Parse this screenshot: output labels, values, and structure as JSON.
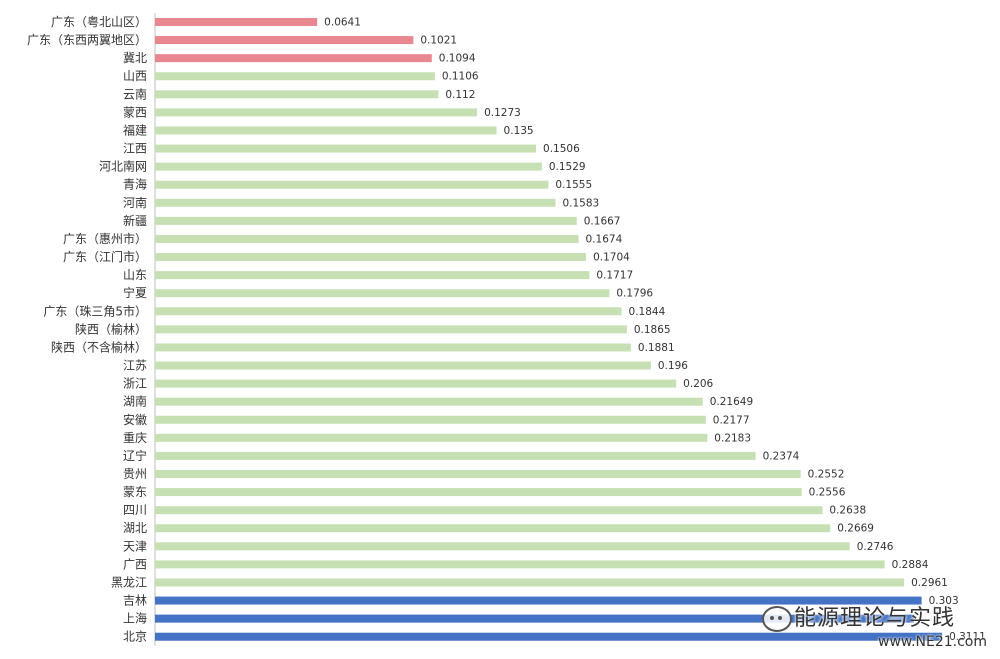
{
  "chart_data": {
    "type": "bar",
    "orientation": "horizontal",
    "categories": [
      "广东（粤北山区）",
      "广东（东西两翼地区）",
      "冀北",
      "山西",
      "云南",
      "蒙西",
      "福建",
      "江西",
      "河北南网",
      "青海",
      "河南",
      "新疆",
      "广东（惠州市）",
      "广东（江门市）",
      "山东",
      "宁夏",
      "广东（珠三角5市）",
      "陕西（榆林）",
      "陕西（不含榆林）",
      "江苏",
      "浙江",
      "湖南",
      "安徽",
      "重庆",
      "辽宁",
      "贵州",
      "蒙东",
      "四川",
      "湖北",
      "天津",
      "广西",
      "黑龙江",
      "吉林",
      "上海",
      "北京"
    ],
    "values": [
      0.0641,
      0.1021,
      0.1094,
      0.1106,
      0.112,
      0.1273,
      0.135,
      0.1506,
      0.1529,
      0.1555,
      0.1583,
      0.1667,
      0.1674,
      0.1704,
      0.1717,
      0.1796,
      0.1844,
      0.1865,
      0.1881,
      0.196,
      0.206,
      0.21649,
      0.2177,
      0.2183,
      0.2374,
      0.2552,
      0.2556,
      0.2638,
      0.2669,
      0.2746,
      0.2884,
      0.2961,
      0.303,
      0.3,
      0.3111
    ],
    "value_labels": [
      "0.0641",
      "0.1021",
      "0.1094",
      "0.1106",
      "0.112",
      "0.1273",
      "0.135",
      "0.1506",
      "0.1529",
      "0.1555",
      "0.1583",
      "0.1667",
      "0.1674",
      "0.1704",
      "0.1717",
      "0.1796",
      "0.1844",
      "0.1865",
      "0.1881",
      "0.196",
      "0.206",
      "0.21649",
      "0.2177",
      "0.2183",
      "0.2374",
      "0.2552",
      "0.2556",
      "0.2638",
      "0.2669",
      "0.2746",
      "0.2884",
      "0.2961",
      "0.303",
      "",
      "0.3111"
    ],
    "groups": [
      "low",
      "low",
      "low",
      "mid",
      "mid",
      "mid",
      "mid",
      "mid",
      "mid",
      "mid",
      "mid",
      "mid",
      "mid",
      "mid",
      "mid",
      "mid",
      "mid",
      "mid",
      "mid",
      "mid",
      "mid",
      "mid",
      "mid",
      "mid",
      "mid",
      "mid",
      "mid",
      "mid",
      "mid",
      "mid",
      "mid",
      "mid",
      "high",
      "high",
      "high"
    ],
    "colors": {
      "low": "#e8878f",
      "mid": "#c6e0b4",
      "high": "#4472c4",
      "label": "#333333",
      "axis": "#bfbfbf"
    },
    "title": "",
    "xlabel": "",
    "ylabel": "",
    "xlim": [
      0,
      0.32
    ],
    "grid": false,
    "legend": "none"
  },
  "watermark": {
    "icon": "wechat-icon",
    "name": "能源理论与实践",
    "url": "www.NE21.com"
  }
}
